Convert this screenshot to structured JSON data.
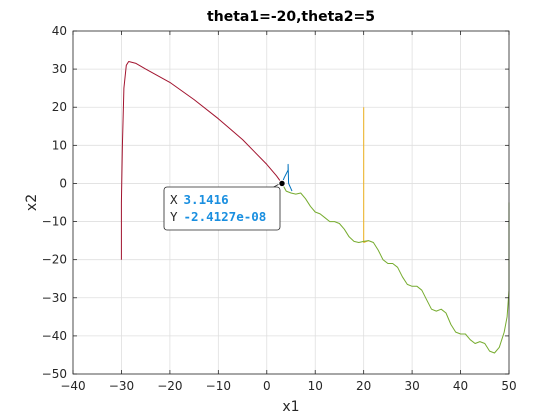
{
  "chart_data": {
    "type": "line",
    "title": "theta1=-20,theta2=5",
    "xlabel": "x1",
    "ylabel": "x2",
    "xlim": [
      -40,
      50
    ],
    "ylim": [
      -50,
      40
    ],
    "xticks": [
      -40,
      -30,
      -20,
      -10,
      0,
      10,
      20,
      30,
      40,
      50
    ],
    "yticks": [
      -50,
      -40,
      -30,
      -20,
      -10,
      0,
      10,
      20,
      30,
      40
    ],
    "grid": true,
    "series": [
      {
        "color": "#0072BD",
        "points": [
          [
            3.14,
            0
          ],
          [
            3.6,
            1.5
          ],
          [
            4.4,
            3.5
          ],
          [
            4.4,
            5
          ],
          [
            4.5,
            0
          ],
          [
            5.2,
            -2
          ]
        ]
      },
      {
        "color": "#A2142F",
        "points": [
          [
            -30,
            -20
          ],
          [
            -30,
            -5
          ],
          [
            -29.8,
            10
          ],
          [
            -29.5,
            25
          ],
          [
            -29,
            31
          ],
          [
            -28.5,
            32
          ],
          [
            -27,
            31.5
          ],
          [
            -25,
            30
          ],
          [
            -20,
            26.5
          ],
          [
            -15,
            22
          ],
          [
            -10,
            17
          ],
          [
            -5,
            11.5
          ],
          [
            0,
            5
          ],
          [
            2,
            2
          ],
          [
            3.14,
            0
          ]
        ]
      },
      {
        "color": "#EDB120",
        "points": [
          [
            20,
            20
          ],
          [
            20,
            5
          ],
          [
            20,
            -10
          ],
          [
            20,
            -15.5
          ],
          [
            21,
            -15
          ]
        ]
      },
      {
        "color": "#77AC30",
        "points": [
          [
            3.14,
            0
          ],
          [
            4,
            -2
          ],
          [
            5,
            -2.5
          ],
          [
            6,
            -2.8
          ],
          [
            7,
            -2.5
          ],
          [
            8,
            -4
          ],
          [
            9,
            -6
          ],
          [
            10,
            -7.5
          ],
          [
            11,
            -8
          ],
          [
            12,
            -9
          ],
          [
            13,
            -10
          ],
          [
            14,
            -10
          ],
          [
            15,
            -10.5
          ],
          [
            16,
            -12
          ],
          [
            17,
            -14
          ],
          [
            18,
            -15.2
          ],
          [
            19,
            -15.5
          ],
          [
            20,
            -15.2
          ],
          [
            21,
            -15
          ],
          [
            22,
            -15.5
          ],
          [
            23,
            -17.5
          ],
          [
            24,
            -20
          ],
          [
            25,
            -21
          ],
          [
            26,
            -21
          ],
          [
            27,
            -22
          ],
          [
            28,
            -24.5
          ],
          [
            29,
            -26.5
          ],
          [
            30,
            -27
          ],
          [
            31,
            -27
          ],
          [
            32,
            -28
          ],
          [
            33,
            -30.5
          ],
          [
            34,
            -33
          ],
          [
            35,
            -33.5
          ],
          [
            36,
            -33
          ],
          [
            37,
            -34
          ],
          [
            38,
            -37
          ],
          [
            39,
            -39
          ],
          [
            40,
            -39.5
          ],
          [
            41,
            -39.5
          ],
          [
            42,
            -41
          ],
          [
            43,
            -42
          ],
          [
            44,
            -41.5
          ],
          [
            45,
            -42
          ],
          [
            46,
            -44
          ],
          [
            47,
            -44.5
          ],
          [
            48,
            -43
          ],
          [
            49,
            -39
          ],
          [
            49.6,
            -35
          ],
          [
            50,
            -28
          ],
          [
            50,
            -20
          ],
          [
            50,
            -5
          ]
        ]
      }
    ],
    "datatip": {
      "point": [
        3.1416,
        0
      ],
      "x_label": "X",
      "x_value": "3.1416",
      "y_label": "Y",
      "y_value": "-2.4127e-08"
    }
  }
}
